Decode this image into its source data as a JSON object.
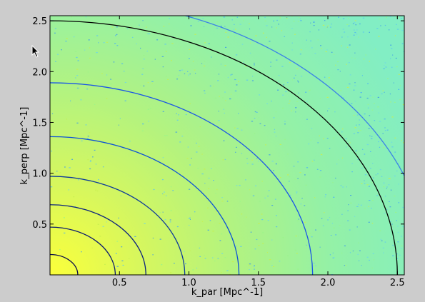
{
  "chart_data": {
    "type": "heatmap",
    "title": "",
    "xlabel": "k_par [Mpc^-1]",
    "ylabel": "k_perp [Mpc^-1]",
    "xlim": [
      0.0,
      2.55
    ],
    "ylim": [
      0.0,
      2.55
    ],
    "xticks": [
      0.5,
      1.0,
      1.5,
      2.0,
      2.5
    ],
    "xtick_labels": [
      "0.5",
      "1.0",
      "1.5",
      "2.0",
      "2.5"
    ],
    "yticks": [
      0.5,
      1.0,
      1.5,
      2.0,
      2.5
    ],
    "ytick_labels": [
      "0.5",
      "1.0",
      "1.5",
      "2.0",
      "2.5"
    ],
    "grid": false,
    "background_gradient": {
      "description": "2D power density, highest near origin",
      "colors": [
        "#fbff3a",
        "#d9f56b",
        "#a6f58f",
        "#8ef3b2",
        "#7ff0c9"
      ]
    },
    "contours": [
      {
        "radius": 0.2,
        "color": "#0a0a4a"
      },
      {
        "radius": 0.47,
        "color": "#0d1c6e"
      },
      {
        "radius": 0.69,
        "color": "#0d237e"
      },
      {
        "radius": 0.97,
        "color": "#0d3a9a"
      },
      {
        "radius": 1.36,
        "color": "#0c52d6"
      },
      {
        "radius": 1.89,
        "color": "#1a55e6"
      },
      {
        "radius": 2.5,
        "color": "#000000"
      },
      {
        "radius": 2.73,
        "color": "#3b82e6"
      }
    ]
  }
}
